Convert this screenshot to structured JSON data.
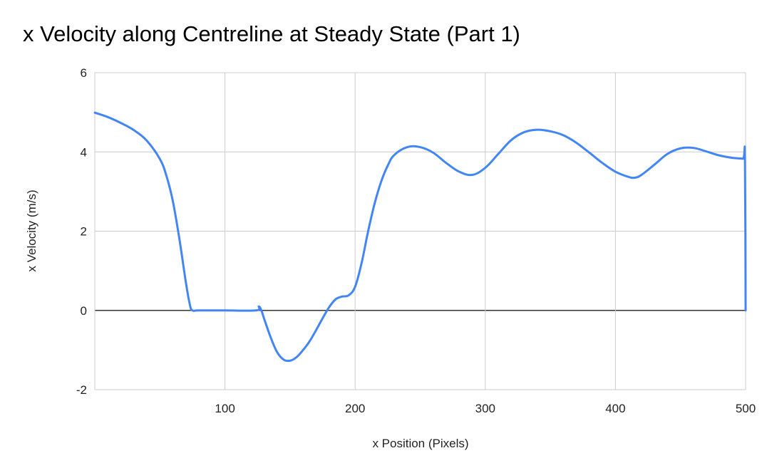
{
  "chart_data": {
    "type": "line",
    "title": "x Velocity along Centreline at Steady State (Part 1)",
    "xlabel": "x Position (Pixels)",
    "ylabel": "x Velocity (m/s)",
    "xlim": [
      0,
      500
    ],
    "ylim": [
      -2,
      6
    ],
    "x_ticks": [
      100,
      200,
      300,
      400,
      500
    ],
    "x_tick_labels": [
      "100",
      "200",
      "300",
      "400",
      "500"
    ],
    "y_ticks": [
      -2,
      0,
      2,
      4,
      6
    ],
    "y_tick_labels": [
      "-2",
      "0",
      "2",
      "4",
      "6"
    ],
    "grid": true,
    "legend": "none",
    "series": [
      {
        "color": "#4285f4",
        "x": [
          0,
          10,
          20,
          30,
          40,
          50,
          55,
          60,
          65,
          70,
          73,
          75,
          80,
          100,
          124,
          126,
          128,
          130,
          135,
          140,
          145,
          150,
          155,
          160,
          165,
          170,
          175,
          180,
          185,
          190,
          195,
          200,
          205,
          210,
          215,
          220,
          225,
          230,
          240,
          250,
          260,
          270,
          280,
          290,
          300,
          310,
          320,
          330,
          340,
          350,
          360,
          370,
          380,
          390,
          400,
          410,
          415,
          420,
          430,
          440,
          450,
          460,
          470,
          480,
          490,
          498,
          499.5,
          500
        ],
        "y": [
          4.99,
          4.88,
          4.73,
          4.55,
          4.28,
          3.82,
          3.4,
          2.75,
          1.8,
          0.7,
          0.15,
          0.0,
          0.0,
          0.0,
          0.0,
          0.1,
          0.0,
          -0.2,
          -0.67,
          -1.05,
          -1.24,
          -1.27,
          -1.18,
          -1.0,
          -0.78,
          -0.5,
          -0.2,
          0.08,
          0.28,
          0.35,
          0.38,
          0.6,
          1.2,
          2.0,
          2.7,
          3.25,
          3.65,
          3.92,
          4.12,
          4.12,
          3.98,
          3.72,
          3.5,
          3.42,
          3.6,
          3.95,
          4.3,
          4.5,
          4.56,
          4.52,
          4.42,
          4.23,
          3.98,
          3.72,
          3.5,
          3.37,
          3.35,
          3.42,
          3.68,
          3.95,
          4.09,
          4.1,
          4.01,
          3.91,
          3.85,
          3.83,
          3.83,
          0.0
        ]
      }
    ]
  }
}
